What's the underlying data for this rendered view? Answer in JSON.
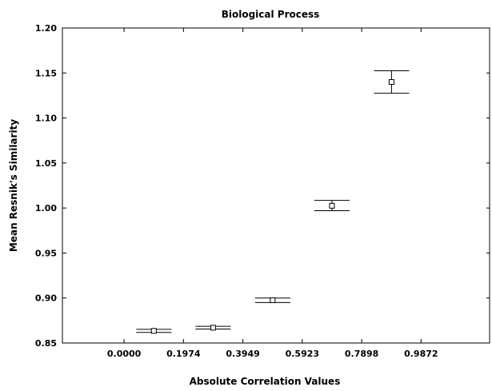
{
  "chart_data": {
    "type": "scatter",
    "title": "Biological Process",
    "xlabel": "Absolute Correlation Values",
    "ylabel": "Mean Resnik's Similarity",
    "xlim": [
      -0.205,
      1.215
    ],
    "ylim": [
      0.85,
      1.2
    ],
    "x_ticks": [
      "0.0000",
      "0.1974",
      "0.3949",
      "0.5923",
      "0.7898",
      "0.9872"
    ],
    "x_tick_values": [
      0.0,
      0.1974,
      0.3949,
      0.5923,
      0.7898,
      0.9872
    ],
    "y_ticks": [
      "1.20",
      "1.15",
      "1.10",
      "1.05",
      "1.00",
      "0.95",
      "0.90",
      "0.85"
    ],
    "y_tick_values": [
      1.2,
      1.15,
      1.1,
      1.05,
      1.0,
      0.95,
      0.9,
      0.85
    ],
    "points": [
      {
        "x": 0.099,
        "y": 0.8635,
        "low": 0.8618,
        "high": 0.8652
      },
      {
        "x": 0.296,
        "y": 0.867,
        "low": 0.8655,
        "high": 0.8685
      },
      {
        "x": 0.494,
        "y": 0.8975,
        "low": 0.895,
        "high": 0.9
      },
      {
        "x": 0.691,
        "y": 1.0025,
        "low": 0.997,
        "high": 1.0085
      },
      {
        "x": 0.889,
        "y": 1.14,
        "low": 1.1275,
        "high": 1.1525
      }
    ],
    "marker": "open-square",
    "error_bars": true,
    "grid": false,
    "legend": "none",
    "color": "#000000"
  }
}
